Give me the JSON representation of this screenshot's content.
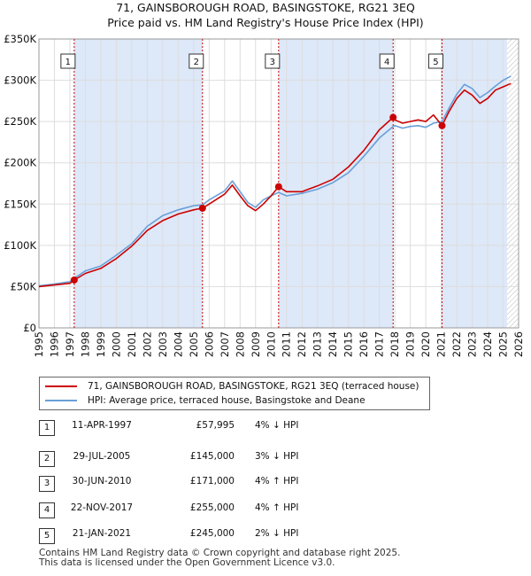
{
  "title_line1": "71, GAINSBOROUGH ROAD, BASINGSTOKE, RG21 3EQ",
  "title_line2": "Price paid vs. HM Land Registry's House Price Index (HPI)",
  "colors": {
    "property": "#cc0000",
    "hpi": "#6a9fd8",
    "shade": "#dde8f8",
    "grid": "#dddddd",
    "marker": "#cc0000"
  },
  "chart_data": {
    "type": "line",
    "xlim": [
      1995,
      2026
    ],
    "ylim": [
      0,
      350000
    ],
    "y_ticks": [
      0,
      50000,
      100000,
      150000,
      200000,
      250000,
      300000,
      350000
    ],
    "y_tick_labels": [
      "£0",
      "£50K",
      "£100K",
      "£150K",
      "£200K",
      "£250K",
      "£300K",
      "£350K"
    ],
    "x_ticks": [
      1995,
      1996,
      1997,
      1998,
      1999,
      2000,
      2001,
      2002,
      2003,
      2004,
      2005,
      2006,
      2007,
      2008,
      2009,
      2010,
      2011,
      2012,
      2013,
      2014,
      2015,
      2016,
      2017,
      2018,
      2019,
      2020,
      2021,
      2022,
      2023,
      2024,
      2025,
      2026
    ],
    "x_tick_labels": [
      "1995",
      "1996",
      "1997",
      "1998",
      "1999",
      "2000",
      "2001",
      "2002",
      "2003",
      "2004",
      "2005",
      "2006",
      "2007",
      "2008",
      "2009",
      "2010",
      "2011",
      "2012",
      "2013",
      "2014",
      "2015",
      "2016",
      "2017",
      "2018",
      "2019",
      "2020",
      "2021",
      "2022",
      "2023",
      "2024",
      "2025",
      "2026"
    ],
    "shaded_spans": [
      [
        1997.28,
        2005.57
      ],
      [
        2010.49,
        2017.89
      ],
      [
        2021.05,
        2025.25
      ]
    ],
    "hatched_from": 2025.25,
    "series": [
      {
        "name": "71, GAINSBOROUGH ROAD, BASINGSTOKE, RG21 3EQ (terraced house)",
        "x": [
          1995,
          1996,
          1997,
          1997.28,
          1998,
          1999,
          2000,
          2001,
          2002,
          2003,
          2004,
          2005,
          2005.57,
          2006,
          2007,
          2007.5,
          2008,
          2008.5,
          2009,
          2009.5,
          2010,
          2010.49,
          2011,
          2012,
          2013,
          2014,
          2015,
          2016,
          2017,
          2017.89,
          2018,
          2018.5,
          2019,
          2019.5,
          2020,
          2020.5,
          2021.05,
          2021.5,
          2022,
          2022.5,
          2023,
          2023.5,
          2024,
          2024.5,
          2025,
          2025.5
        ],
        "y": [
          50000,
          52000,
          54000,
          57995,
          66000,
          72000,
          84000,
          99000,
          118000,
          130000,
          138000,
          143000,
          145000,
          150000,
          162000,
          173000,
          160000,
          148000,
          142000,
          150000,
          160000,
          171000,
          165000,
          165000,
          172000,
          180000,
          195000,
          215000,
          240000,
          255000,
          252000,
          248000,
          250000,
          252000,
          250000,
          258000,
          245000,
          262000,
          278000,
          288000,
          282000,
          272000,
          278000,
          288000,
          292000,
          296000
        ]
      },
      {
        "name": "HPI: Average price, terraced house, Basingstoke and Deane",
        "x": [
          1995,
          1996,
          1997,
          1997.28,
          1998,
          1999,
          2000,
          2001,
          2002,
          2003,
          2004,
          2005,
          2005.57,
          2006,
          2007,
          2007.5,
          2008,
          2008.5,
          2009,
          2009.5,
          2010,
          2010.49,
          2011,
          2012,
          2013,
          2014,
          2015,
          2016,
          2017,
          2017.89,
          2018,
          2018.5,
          2019,
          2019.5,
          2020,
          2020.5,
          2021.05,
          2021.5,
          2022,
          2022.5,
          2023,
          2023.5,
          2024,
          2024.5,
          2025,
          2025.5
        ],
        "y": [
          51000,
          53000,
          56000,
          60000,
          69000,
          75000,
          88000,
          102000,
          123000,
          136000,
          143000,
          148000,
          149000,
          155000,
          166000,
          178000,
          165000,
          152000,
          146000,
          155000,
          160000,
          164000,
          160000,
          163000,
          168000,
          176000,
          188000,
          208000,
          230000,
          244000,
          245000,
          242000,
          244000,
          245000,
          243000,
          248000,
          250000,
          266000,
          283000,
          295000,
          290000,
          279000,
          285000,
          293000,
          300000,
          305000
        ]
      }
    ],
    "annotations": [
      {
        "label": "1",
        "x": 1997.28,
        "y": 57995
      },
      {
        "label": "2",
        "x": 2005.57,
        "y": 145000
      },
      {
        "label": "3",
        "x": 2010.49,
        "y": 171000
      },
      {
        "label": "4",
        "x": 2017.89,
        "y": 255000
      },
      {
        "label": "5",
        "x": 2021.05,
        "y": 245000
      }
    ]
  },
  "legend": {
    "property_label": "71, GAINSBOROUGH ROAD, BASINGSTOKE, RG21 3EQ (terraced house)",
    "hpi_label": "HPI: Average price, terraced house, Basingstoke and Deane"
  },
  "transactions": [
    {
      "num": "1",
      "date": "11-APR-1997",
      "price": "£57,995",
      "hpi": "4% ↓ HPI"
    },
    {
      "num": "2",
      "date": "29-JUL-2005",
      "price": "£145,000",
      "hpi": "3% ↓ HPI"
    },
    {
      "num": "3",
      "date": "30-JUN-2010",
      "price": "£171,000",
      "hpi": "4% ↑ HPI"
    },
    {
      "num": "4",
      "date": "22-NOV-2017",
      "price": "£255,000",
      "hpi": "4% ↑ HPI"
    },
    {
      "num": "5",
      "date": "21-JAN-2021",
      "price": "£245,000",
      "hpi": "2% ↓ HPI"
    }
  ],
  "footer_line1": "Contains HM Land Registry data © Crown copyright and database right 2025.",
  "footer_line2": "This data is licensed under the Open Government Licence v3.0."
}
